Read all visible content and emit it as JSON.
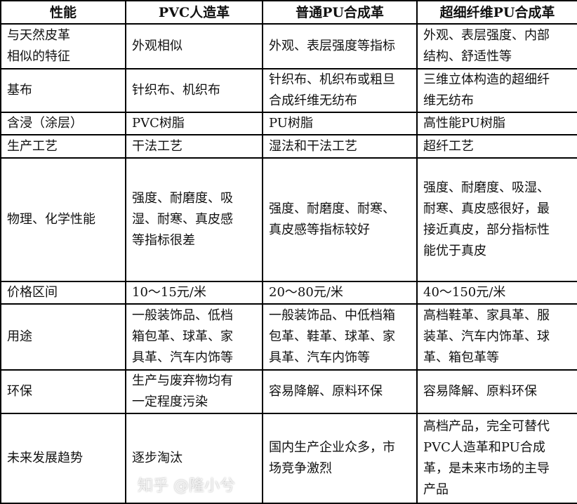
{
  "table": {
    "headers": [
      "性能",
      "PVC人造革",
      "普通PU合成革",
      "超细纤维PU合成革"
    ],
    "rows": [
      [
        [
          "与天然皮革",
          "相似的特征"
        ],
        [
          "外观相似"
        ],
        [
          "外观、表层强度等指标"
        ],
        [
          "外观、表层强度、内部",
          "结构、舒适性等"
        ]
      ],
      [
        [
          "基布"
        ],
        [
          "针织布、机织布"
        ],
        [
          "针织布、机织布或粗旦",
          "合成纤维无纺布"
        ],
        [
          "三维立体构造的超细纤",
          "维无纺布"
        ]
      ],
      [
        [
          "含浸（涂层）"
        ],
        [
          "PVC树脂"
        ],
        [
          "PU树脂"
        ],
        [
          "高性能PU树脂"
        ]
      ],
      [
        [
          "生产工艺"
        ],
        [
          "干法工艺"
        ],
        [
          "湿法和干法工艺"
        ],
        [
          "超纤工艺"
        ]
      ],
      [
        [
          "物理、化学性能"
        ],
        [
          "强度、耐磨度、吸",
          "湿、耐寒、真皮感",
          "等指标很差"
        ],
        [
          "强度、耐磨度、耐寒、",
          "真皮感等指标较好"
        ],
        [
          "强度、耐磨度、吸湿、",
          "耐寒、真皮感很好，最",
          "接近真皮，部分指标性",
          "能优于真皮"
        ]
      ],
      [
        [
          "价格区间"
        ],
        [
          "10～15元/米"
        ],
        [
          "20～80元/米"
        ],
        [
          "40～150元/米"
        ]
      ],
      [
        [
          "用途"
        ],
        [
          "一般装饰品、低档",
          "箱包革、球革、家",
          "具革、汽车内饰等"
        ],
        [
          "一般装饰品、中低档箱",
          "包革、鞋革、球革、家",
          "具革、汽车内饰等"
        ],
        [
          "高档鞋革、家具革、服",
          "装革、汽车内饰革、球",
          "革、箱包革等"
        ]
      ],
      [
        [
          "环保"
        ],
        [
          "生产与废弃物均有",
          "一定程度污染"
        ],
        [
          "容易降解、原料环保"
        ],
        [
          "容易降解、原料环保"
        ]
      ],
      [
        [
          "未来发展趋势"
        ],
        [
          "逐步淘汰"
        ],
        [
          "国内生产企业众多，市",
          "场竞争激烈"
        ],
        [
          "高档产品，完全可替代",
          "PVC人造革和PU合成",
          "革，是未来市场的主导",
          "产品"
        ]
      ]
    ]
  },
  "watermark": "知乎 @隆小兮"
}
